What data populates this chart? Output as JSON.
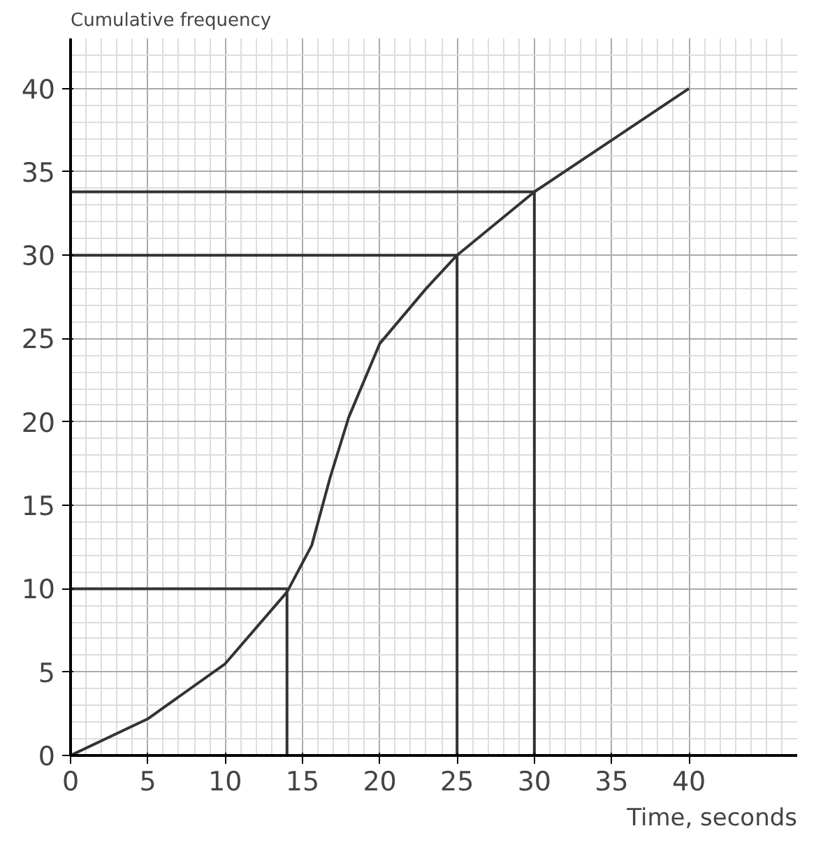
{
  "chart_data": {
    "type": "line",
    "xlabel": "Time, seconds",
    "ylabel": "Cumulative frequency",
    "series": [
      {
        "color": "#333333",
        "x": [
          0,
          5,
          10,
          14,
          15.6,
          16.8,
          18,
          20,
          23,
          25,
          30,
          35,
          40
        ],
        "values": [
          0,
          2.2,
          5.5,
          9.8,
          12.6,
          16.7,
          20.3,
          24.7,
          28,
          30,
          33.8,
          36.9,
          40
        ]
      },
      {
        "color": "#333333",
        "x": [
          0,
          14,
          14
        ],
        "values": [
          10,
          10,
          0
        ]
      },
      {
        "color": "#333333",
        "x": [
          0,
          25,
          25
        ],
        "values": [
          30,
          30,
          0
        ]
      },
      {
        "color": "#333333",
        "x": [
          0,
          30,
          30
        ],
        "values": [
          33.8,
          33.8,
          0
        ]
      }
    ],
    "xlim": [
      0,
      47
    ],
    "ylim": [
      0,
      43
    ],
    "xticks": [
      0,
      5,
      10,
      15,
      20,
      25,
      30,
      35,
      40
    ],
    "yticks": [
      0,
      5,
      10,
      15,
      20,
      25,
      30,
      35,
      40
    ],
    "grid": true
  }
}
